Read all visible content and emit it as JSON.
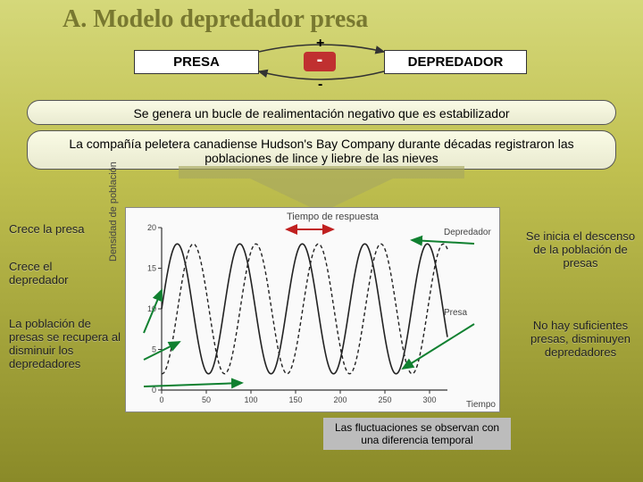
{
  "title": "A. Modelo depredador presa",
  "loop": {
    "presa": "PRESA",
    "depredador": "DEPREDADOR",
    "center_sign": "-",
    "top_sign": "+",
    "bottom_sign": "-"
  },
  "banner1": "Se genera un bucle de realimentación negativo que es estabilizador",
  "banner2": "La compañía peletera canadiense Hudson's Bay Company durante décadas registraron las poblaciones de lince y liebre de las nieves",
  "annotations": {
    "a1": "Crece la presa",
    "a2": "Crece el depredador",
    "a3": "La población de presas se recupera al disminuir los depredadores",
    "a4": "Se inicia el descenso de la población de presas",
    "a5": "No hay suficientes presas, disminuyen depredadores"
  },
  "caption": "Las fluctuaciones se observan con una diferencia temporal",
  "chart": {
    "type": "line",
    "xlabel": "Tiempo",
    "ylabel": "Densidad de población",
    "top_label": "Tiempo de respuesta",
    "xlim": [
      0,
      320
    ],
    "xtick_step": 50,
    "ylim": [
      0,
      20
    ],
    "ytick_step": 5,
    "background_color": "#fafafa",
    "axis_color": "#333333",
    "grid": false,
    "series": [
      {
        "name": "Depredador",
        "label": "Depredador",
        "color": "#222222",
        "dash": "4 3",
        "width": 1.4,
        "amplitude": 8,
        "mean": 10,
        "period": 70,
        "phase": 18,
        "label_pos": {
          "x": 356,
          "y": 30
        }
      },
      {
        "name": "Presa",
        "label": "Presa",
        "color": "#222222",
        "dash": "none",
        "width": 1.6,
        "amplitude": 8,
        "mean": 10,
        "period": 70,
        "phase": 0,
        "label_pos": {
          "x": 356,
          "y": 120
        }
      }
    ],
    "indicator_arrows": [
      {
        "color": "#c02020",
        "from": [
          180,
          24
        ],
        "to": [
          232,
          24
        ],
        "double": true
      },
      {
        "color": "#108030",
        "from": [
          20,
          140
        ],
        "to": [
          40,
          92
        ]
      },
      {
        "color": "#108030",
        "from": [
          20,
          170
        ],
        "to": [
          60,
          150
        ]
      },
      {
        "color": "#108030",
        "from": [
          20,
          200
        ],
        "to": [
          130,
          196
        ]
      },
      {
        "color": "#108030",
        "from": [
          390,
          40
        ],
        "to": [
          320,
          36
        ]
      },
      {
        "color": "#108030",
        "from": [
          390,
          130
        ],
        "to": [
          310,
          180
        ]
      }
    ]
  },
  "colors": {
    "title": "#787830",
    "redbox": "#c03030",
    "arrow_green": "#108030",
    "arrow_red": "#c02020",
    "bg_top": "#d5d87a",
    "bg_bottom": "#8a8a28"
  }
}
